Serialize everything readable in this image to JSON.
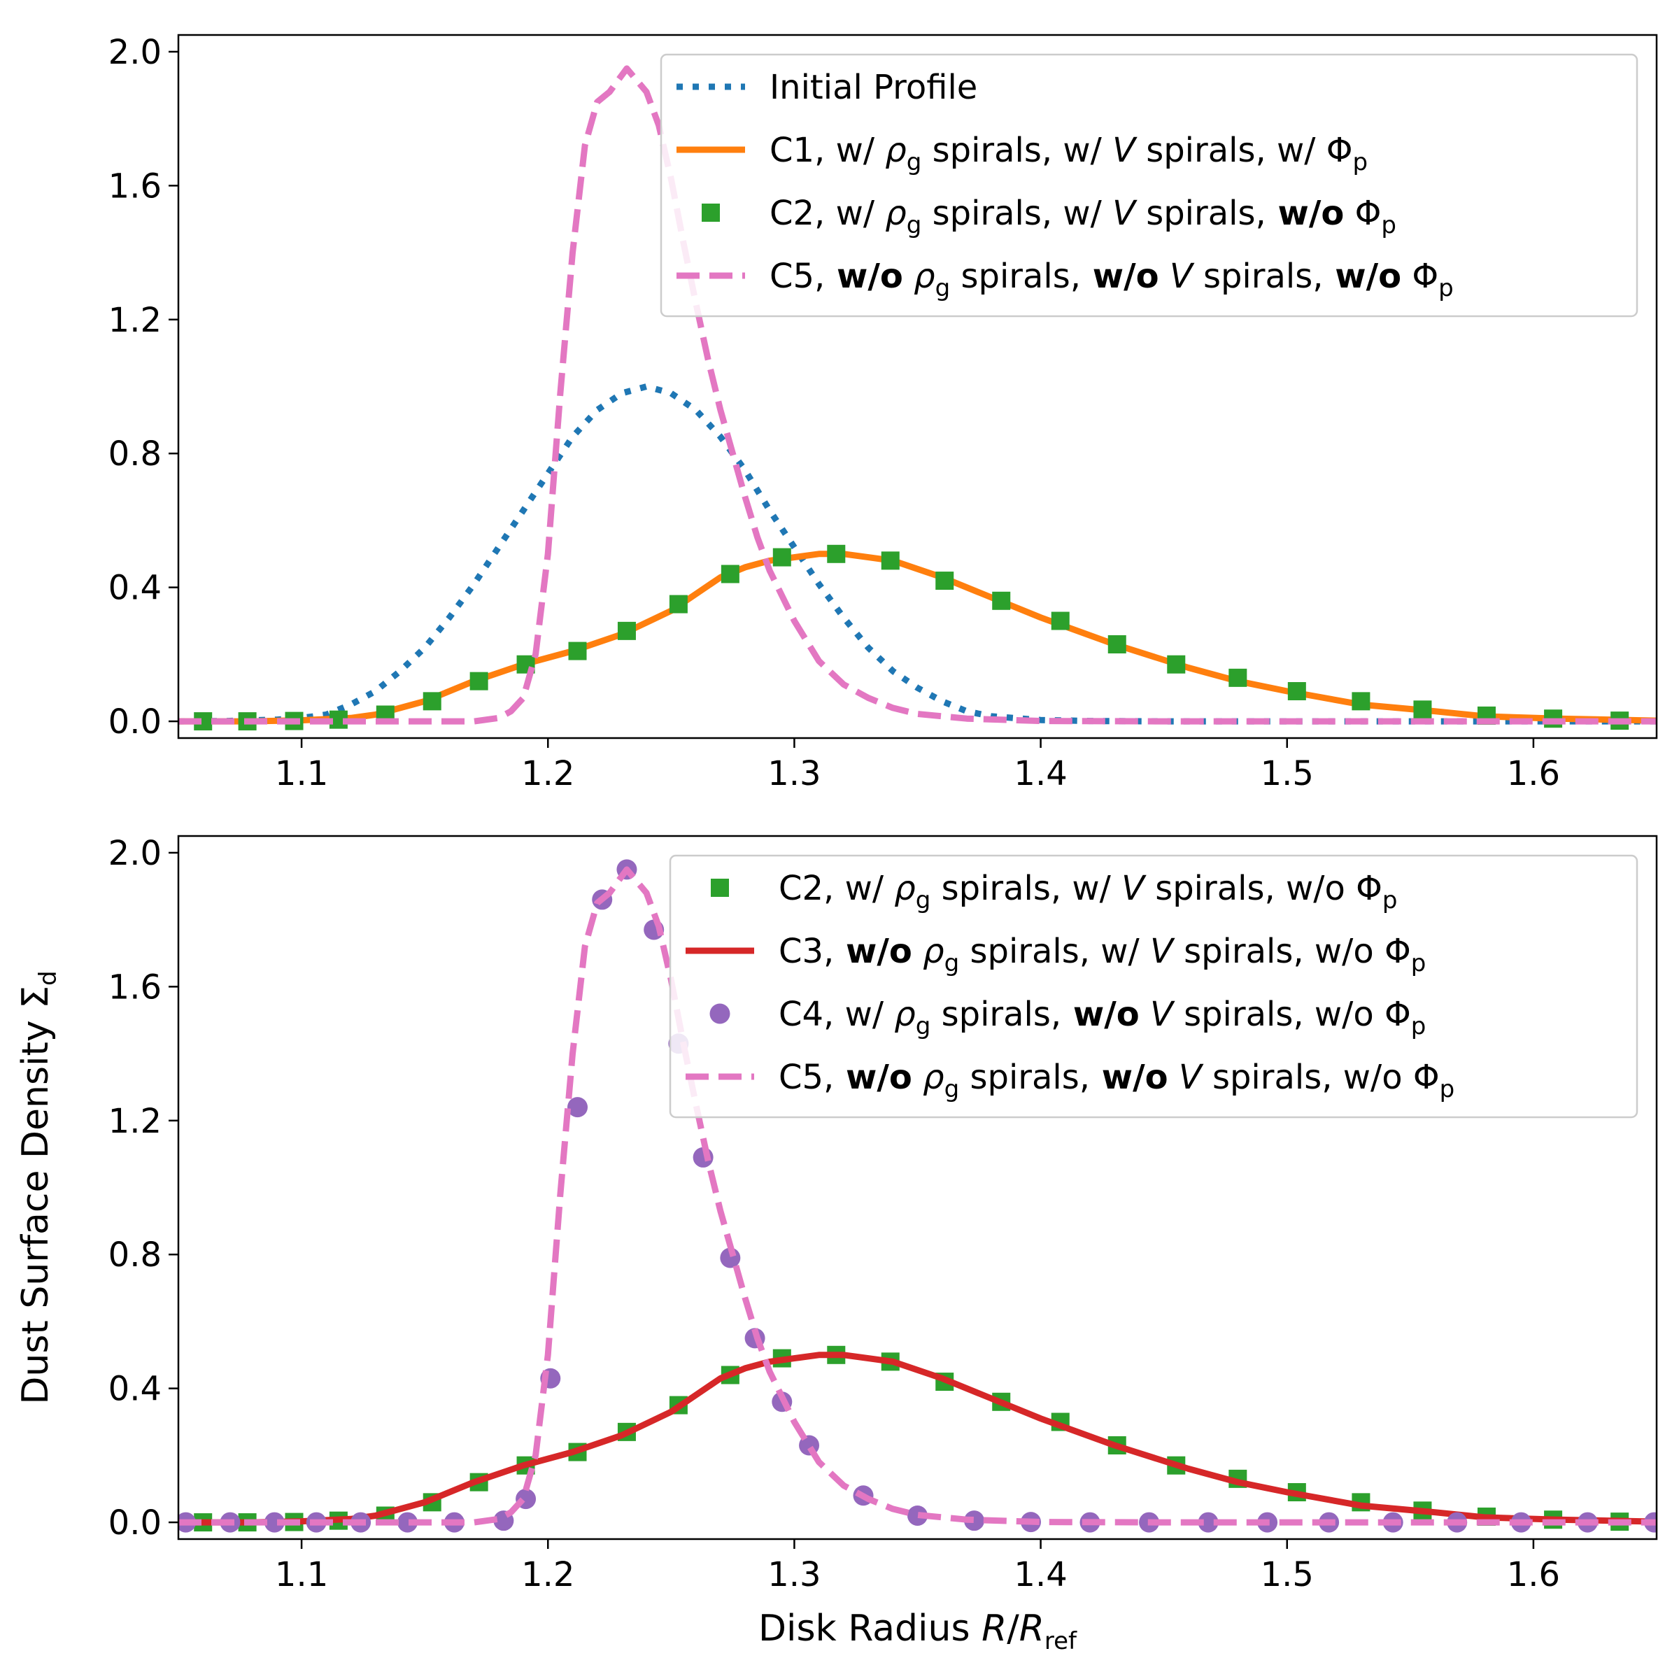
{
  "chart_data": [
    {
      "type": "line",
      "xlim": [
        1.05,
        1.65
      ],
      "ylim": [
        -0.05,
        2.05
      ],
      "xticks": [
        1.1,
        1.2,
        1.3,
        1.4,
        1.5,
        1.6
      ],
      "xtick_labels": [
        "1.1",
        "1.2",
        "1.3",
        "1.4",
        "1.5",
        "1.6"
      ],
      "yticks": [
        0.0,
        0.4,
        0.8,
        1.2,
        1.6,
        2.0
      ],
      "ytick_labels": [
        "0.0",
        "0.4",
        "0.8",
        "1.2",
        "1.6",
        "2.0"
      ],
      "legend_position": "top-right",
      "series": [
        {
          "key": "initial",
          "name": "Initial Profile",
          "color": "#1f77b4",
          "style": "dotted",
          "x": [
            1.05,
            1.07,
            1.09,
            1.1,
            1.11,
            1.12,
            1.13,
            1.14,
            1.15,
            1.16,
            1.17,
            1.18,
            1.19,
            1.2,
            1.21,
            1.22,
            1.23,
            1.24,
            1.25,
            1.26,
            1.27,
            1.28,
            1.29,
            1.3,
            1.31,
            1.32,
            1.33,
            1.34,
            1.35,
            1.36,
            1.37,
            1.38,
            1.4,
            1.42,
            1.45,
            1.5,
            1.65
          ],
          "y": [
            0.0,
            0.001,
            0.005,
            0.01,
            0.02,
            0.05,
            0.09,
            0.15,
            0.22,
            0.31,
            0.41,
            0.52,
            0.63,
            0.74,
            0.85,
            0.93,
            0.98,
            1.0,
            0.98,
            0.93,
            0.85,
            0.75,
            0.63,
            0.52,
            0.41,
            0.31,
            0.22,
            0.15,
            0.1,
            0.06,
            0.03,
            0.015,
            0.004,
            0.001,
            0.0,
            0.0,
            0.0
          ]
        },
        {
          "key": "c1",
          "name": "C1, w/ ρg spirals, w/ V spirals, w/ Φp",
          "label_parts": [
            "C1, w/",
            "ρ",
            "g",
            "spirals, w/",
            "V",
            "spirals, w/",
            "Φ",
            "p"
          ],
          "color": "#ff7f0e",
          "style": "solid",
          "x": [
            1.05,
            1.08,
            1.1,
            1.12,
            1.13,
            1.15,
            1.17,
            1.19,
            1.21,
            1.23,
            1.25,
            1.26,
            1.27,
            1.28,
            1.29,
            1.3,
            1.31,
            1.32,
            1.33,
            1.34,
            1.36,
            1.38,
            1.4,
            1.43,
            1.46,
            1.48,
            1.5,
            1.53,
            1.56,
            1.58,
            1.61,
            1.65
          ],
          "y": [
            0.0,
            0.0,
            0.003,
            0.01,
            0.02,
            0.06,
            0.12,
            0.17,
            0.21,
            0.26,
            0.33,
            0.38,
            0.43,
            0.46,
            0.48,
            0.49,
            0.5,
            0.5,
            0.49,
            0.48,
            0.43,
            0.37,
            0.31,
            0.23,
            0.16,
            0.12,
            0.09,
            0.05,
            0.03,
            0.015,
            0.008,
            0.002
          ]
        },
        {
          "key": "c2",
          "name": "C2, w/ ρg spirals, w/ V spirals, w/o Φp",
          "label_parts": [
            "C2, w/",
            "ρ",
            "g",
            "spirals, w/",
            "V",
            "spirals,",
            "w/o",
            "Φ",
            "p"
          ],
          "color": "#2ca02c",
          "style": "square",
          "x": [
            1.06,
            1.078,
            1.097,
            1.115,
            1.134,
            1.153,
            1.172,
            1.191,
            1.212,
            1.232,
            1.253,
            1.274,
            1.295,
            1.317,
            1.339,
            1.361,
            1.384,
            1.408,
            1.431,
            1.455,
            1.48,
            1.504,
            1.53,
            1.555,
            1.581,
            1.608,
            1.635
          ],
          "y": [
            0.0,
            0.0,
            0.001,
            0.005,
            0.02,
            0.06,
            0.12,
            0.17,
            0.21,
            0.27,
            0.35,
            0.44,
            0.49,
            0.5,
            0.48,
            0.42,
            0.36,
            0.3,
            0.23,
            0.17,
            0.13,
            0.09,
            0.06,
            0.035,
            0.017,
            0.008,
            0.002
          ]
        },
        {
          "key": "c5",
          "name": "C5, w/o ρg spirals, w/o V spirals, w/o Φp",
          "label_parts": [
            "C5,",
            "w/o",
            "ρ",
            "g",
            "spirals,",
            "w/o",
            "V",
            "spirals,",
            "w/o",
            "Φ",
            "p"
          ],
          "color": "#e377c2",
          "style": "dashed",
          "x": [
            1.05,
            1.1,
            1.15,
            1.17,
            1.18,
            1.185,
            1.19,
            1.195,
            1.2,
            1.205,
            1.21,
            1.215,
            1.22,
            1.225,
            1.232,
            1.24,
            1.245,
            1.25,
            1.255,
            1.26,
            1.265,
            1.27,
            1.275,
            1.28,
            1.285,
            1.29,
            1.3,
            1.31,
            1.32,
            1.33,
            1.34,
            1.35,
            1.37,
            1.4,
            1.45,
            1.5,
            1.65
          ],
          "y": [
            0.0,
            0.0,
            0.0,
            0.0,
            0.01,
            0.03,
            0.07,
            0.2,
            0.5,
            0.98,
            1.4,
            1.72,
            1.85,
            1.88,
            1.95,
            1.88,
            1.78,
            1.62,
            1.43,
            1.25,
            1.08,
            0.93,
            0.8,
            0.67,
            0.55,
            0.45,
            0.3,
            0.18,
            0.11,
            0.07,
            0.04,
            0.022,
            0.008,
            0.001,
            0.0,
            0.0,
            0.0
          ]
        }
      ]
    },
    {
      "type": "line",
      "xlim": [
        1.05,
        1.65
      ],
      "ylim": [
        -0.05,
        2.05
      ],
      "xticks": [
        1.1,
        1.2,
        1.3,
        1.4,
        1.5,
        1.6
      ],
      "xtick_labels": [
        "1.1",
        "1.2",
        "1.3",
        "1.4",
        "1.5",
        "1.6"
      ],
      "yticks": [
        0.0,
        0.4,
        0.8,
        1.2,
        1.6,
        2.0
      ],
      "ytick_labels": [
        "0.0",
        "0.4",
        "0.8",
        "1.2",
        "1.6",
        "2.0"
      ],
      "xlabel_parts": [
        "Disk Radius ",
        "R",
        "/",
        "R",
        "ref"
      ],
      "ylabel_parts": [
        "Dust Surface Density Σ",
        "d"
      ],
      "legend_position": "top-right",
      "series": [
        {
          "key": "c2",
          "name": "C2, w/ ρg spirals, w/ V spirals, w/o Φp",
          "label_parts": [
            "C2, w/",
            "ρ",
            "g",
            "spirals, w/",
            "V",
            "spirals, w/o",
            "Φ",
            "p"
          ],
          "color": "#2ca02c",
          "style": "square",
          "x": [
            1.06,
            1.078,
            1.097,
            1.115,
            1.134,
            1.153,
            1.172,
            1.191,
            1.212,
            1.232,
            1.253,
            1.274,
            1.295,
            1.317,
            1.339,
            1.361,
            1.384,
            1.408,
            1.431,
            1.455,
            1.48,
            1.504,
            1.53,
            1.555,
            1.581,
            1.608,
            1.635
          ],
          "y": [
            0.0,
            0.0,
            0.001,
            0.005,
            0.02,
            0.06,
            0.12,
            0.17,
            0.21,
            0.27,
            0.35,
            0.44,
            0.49,
            0.5,
            0.48,
            0.42,
            0.36,
            0.3,
            0.23,
            0.17,
            0.13,
            0.09,
            0.06,
            0.035,
            0.017,
            0.008,
            0.002
          ]
        },
        {
          "key": "c3",
          "name": "C3, w/o ρg spirals, w/ V spirals, w/o Φp",
          "label_parts": [
            "C3,",
            "w/o",
            "ρ",
            "g",
            "spirals, w/",
            "V",
            "spirals, w/o",
            "Φ",
            "p"
          ],
          "color": "#d62728",
          "style": "solid",
          "x": [
            1.05,
            1.08,
            1.1,
            1.12,
            1.13,
            1.15,
            1.17,
            1.19,
            1.21,
            1.23,
            1.25,
            1.26,
            1.27,
            1.28,
            1.29,
            1.3,
            1.31,
            1.32,
            1.33,
            1.34,
            1.36,
            1.38,
            1.4,
            1.43,
            1.46,
            1.48,
            1.5,
            1.53,
            1.56,
            1.58,
            1.61,
            1.65
          ],
          "y": [
            0.0,
            0.0,
            0.003,
            0.01,
            0.02,
            0.06,
            0.12,
            0.17,
            0.21,
            0.26,
            0.33,
            0.38,
            0.43,
            0.46,
            0.48,
            0.49,
            0.5,
            0.5,
            0.49,
            0.48,
            0.43,
            0.37,
            0.31,
            0.23,
            0.16,
            0.12,
            0.09,
            0.05,
            0.03,
            0.015,
            0.008,
            0.002
          ]
        },
        {
          "key": "c4",
          "name": "C4, w/ ρg spirals, w/o V spirals, w/o Φp",
          "label_parts": [
            "C4, w/",
            "ρ",
            "g",
            "spirals,",
            "w/o",
            "V",
            "spirals, w/o",
            "Φ",
            "p"
          ],
          "color": "#9467bd",
          "style": "circle",
          "x": [
            1.053,
            1.071,
            1.089,
            1.106,
            1.124,
            1.143,
            1.162,
            1.182,
            1.191,
            1.201,
            1.212,
            1.222,
            1.232,
            1.243,
            1.253,
            1.263,
            1.274,
            1.284,
            1.295,
            1.306,
            1.328,
            1.35,
            1.373,
            1.396,
            1.42,
            1.444,
            1.468,
            1.492,
            1.517,
            1.543,
            1.569,
            1.595,
            1.622,
            1.649
          ],
          "y": [
            0.0,
            0.0,
            0.0,
            0.0,
            0.0,
            0.0,
            0.0,
            0.005,
            0.07,
            0.43,
            1.24,
            1.86,
            1.95,
            1.77,
            1.43,
            1.09,
            0.79,
            0.55,
            0.36,
            0.23,
            0.08,
            0.02,
            0.005,
            0.001,
            0.0,
            0.0,
            0.0,
            0.0,
            0.0,
            0.0,
            0.0,
            0.0,
            0.0,
            0.0
          ]
        },
        {
          "key": "c5",
          "name": "C5, w/o ρg spirals, w/o V spirals, w/o Φp",
          "label_parts": [
            "C5,",
            "w/o",
            "ρ",
            "g",
            "spirals,",
            "w/o",
            "V",
            "spirals, w/o",
            "Φ",
            "p"
          ],
          "color": "#e377c2",
          "style": "dashed",
          "x": [
            1.05,
            1.1,
            1.15,
            1.17,
            1.18,
            1.185,
            1.19,
            1.195,
            1.2,
            1.205,
            1.21,
            1.215,
            1.22,
            1.225,
            1.232,
            1.24,
            1.245,
            1.25,
            1.255,
            1.26,
            1.265,
            1.27,
            1.275,
            1.28,
            1.285,
            1.29,
            1.3,
            1.31,
            1.32,
            1.33,
            1.34,
            1.35,
            1.37,
            1.4,
            1.45,
            1.5,
            1.65
          ],
          "y": [
            0.0,
            0.0,
            0.0,
            0.0,
            0.01,
            0.03,
            0.07,
            0.2,
            0.5,
            0.98,
            1.4,
            1.72,
            1.85,
            1.88,
            1.95,
            1.88,
            1.78,
            1.62,
            1.43,
            1.25,
            1.08,
            0.93,
            0.8,
            0.67,
            0.55,
            0.45,
            0.3,
            0.18,
            0.11,
            0.07,
            0.04,
            0.022,
            0.008,
            0.001,
            0.0,
            0.0,
            0.0
          ]
        }
      ]
    }
  ]
}
